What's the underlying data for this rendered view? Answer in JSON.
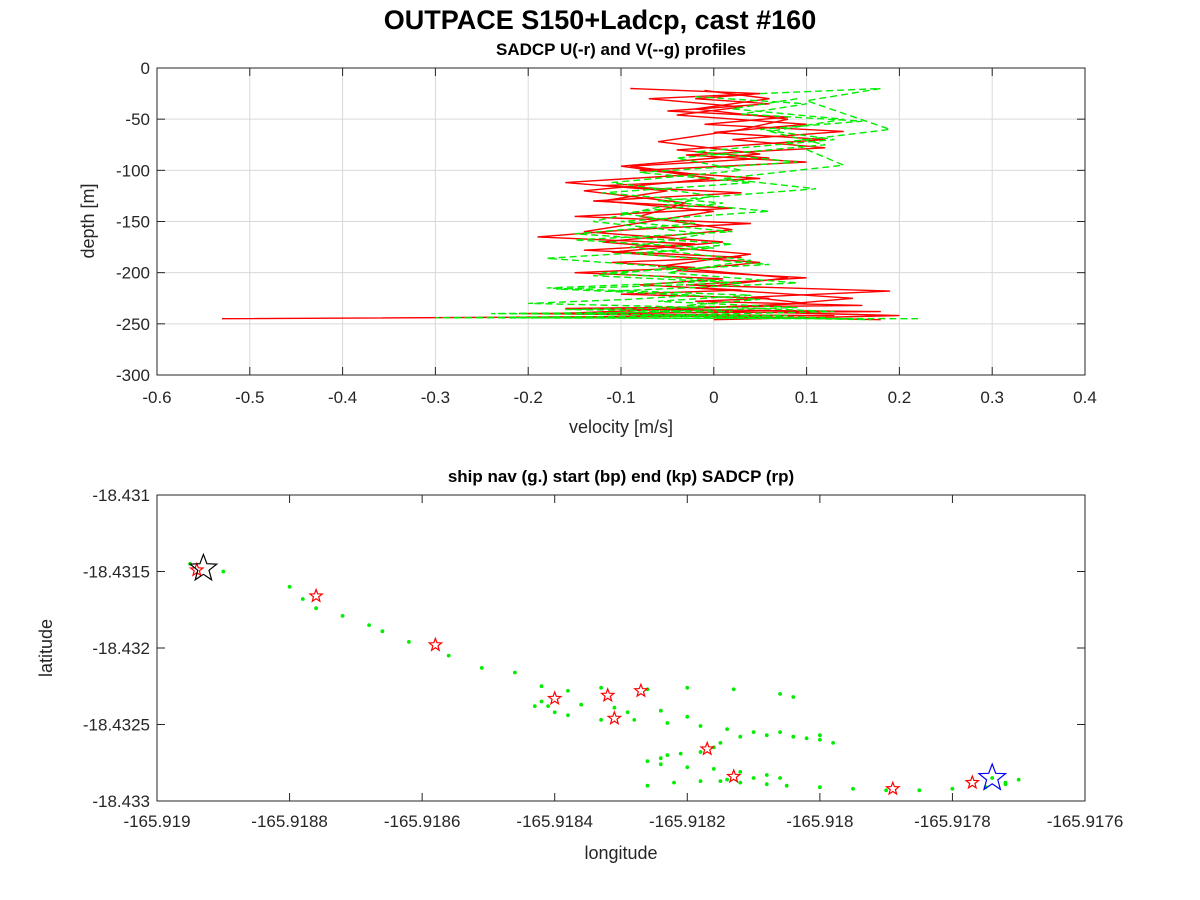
{
  "figure": {
    "title": "OUTPACE S150+Ladcp, cast #160"
  },
  "chart_data": [
    {
      "type": "line",
      "title": "SADCP U(-r) and V(--g) profiles",
      "xlabel": "velocity [m/s]",
      "ylabel": "depth [m]",
      "xlim": [
        -0.6,
        0.4
      ],
      "ylim": [
        -300,
        0
      ],
      "xticks": [
        -0.6,
        -0.5,
        -0.4,
        -0.3,
        -0.2,
        -0.1,
        0,
        0.1,
        0.2,
        0.3,
        0.4
      ],
      "xtick_labels": [
        "-0.6",
        "-0.5",
        "-0.4",
        "-0.3",
        "-0.2",
        "-0.1",
        "0",
        "0.1",
        "0.2",
        "0.3",
        "0.4"
      ],
      "yticks": [
        -300,
        -250,
        -200,
        -150,
        -100,
        -50,
        0
      ],
      "ytick_labels": [
        "-300",
        "-250",
        "-200",
        "-150",
        "-100",
        "-50",
        "0"
      ],
      "grid": true,
      "series": [
        {
          "color": "#ff0000",
          "style": "solid",
          "x": [
            -0.09,
            0.05,
            -0.02,
            0.06,
            -0.05,
            0.08,
            -0.01,
            0.14,
            0.02,
            0.12,
            -0.03,
            0.1,
            -0.08,
            0.05,
            -0.12,
            0.03,
            -0.13,
            0.02,
            -0.15,
            0.04,
            -0.09,
            -0.19,
            -0.02,
            -0.14,
            0.03,
            -0.11,
            -0.02,
            -0.15,
            0.01,
            -0.08,
            0.03,
            -0.1,
            0.06,
            -0.02,
            0.16,
            -0.16,
            0.18,
            -0.21,
            0.13,
            -0.53
          ],
          "y": [
            -20,
            -25,
            -30,
            -35,
            -42,
            -48,
            -55,
            -62,
            -70,
            -78,
            -85,
            -92,
            -100,
            -108,
            -115,
            -122,
            -130,
            -137,
            -145,
            -152,
            -158,
            -165,
            -172,
            -178,
            -185,
            -190,
            -195,
            -200,
            -206,
            -212,
            -217,
            -221,
            -225,
            -228,
            -232,
            -235,
            -238,
            -240,
            -242,
            -245
          ]
        },
        {
          "color": "#ff0000",
          "style": "solid",
          "x": [
            0.05,
            -0.07,
            0.03,
            -0.04,
            0.1,
            0.0,
            0.12,
            -0.04,
            0.06,
            -0.09,
            -0.02,
            -0.16,
            -0.05,
            -0.12,
            0.0,
            -0.07,
            -0.14,
            0.01,
            -0.11,
            0.05,
            -0.04,
            0.1,
            -0.03,
            0.19,
            0.04,
            0.1,
            -0.06,
            0.2,
            0.0
          ],
          "y": [
            -25,
            -30,
            -38,
            -46,
            -55,
            -63,
            -70,
            -80,
            -88,
            -96,
            -104,
            -112,
            -120,
            -130,
            -140,
            -150,
            -160,
            -170,
            -180,
            -190,
            -198,
            -205,
            -212,
            -218,
            -224,
            -230,
            -236,
            -242,
            -246
          ]
        },
        {
          "color": "#ff0000",
          "style": "solid",
          "x": [
            -0.01,
            0.06,
            -0.02,
            0.08,
            0.03,
            -0.06,
            0.05,
            -0.1,
            0.0,
            -0.14,
            -0.03,
            -0.08,
            0.02,
            -0.12,
            0.04,
            -0.06,
            0.08,
            -0.02,
            0.15,
            0.06,
            -0.17,
            0.18
          ],
          "y": [
            -22,
            -30,
            -40,
            -50,
            -60,
            -72,
            -84,
            -96,
            -108,
            -120,
            -132,
            -145,
            -158,
            -170,
            -182,
            -194,
            -205,
            -215,
            -225,
            -232,
            -240,
            -246
          ]
        },
        {
          "color": "#00ee00",
          "style": "dashed",
          "x": [
            0.05,
            0.18,
            0.1,
            0.19,
            0.08,
            0.14,
            0.01,
            0.11,
            -0.06,
            0.06,
            -0.1,
            0.02,
            -0.15,
            0.0,
            -0.18,
            -0.04,
            -0.13,
            0.03,
            -0.17,
            -0.02,
            -0.09,
            -0.2,
            -0.01,
            -0.16,
            0.02,
            -0.24,
            0.08,
            -0.3,
            0.15,
            -0.22,
            0.22
          ],
          "y": [
            -25,
            -20,
            -32,
            -60,
            -72,
            -95,
            -108,
            -118,
            -130,
            -140,
            -150,
            -160,
            -168,
            -176,
            -186,
            -195,
            -203,
            -210,
            -216,
            -222,
            -226,
            -230,
            -234,
            -236,
            -238,
            -240,
            -242,
            -244,
            -245,
            -244,
            -245
          ]
        },
        {
          "color": "#00ee00",
          "style": "dashed",
          "x": [
            -0.02,
            0.1,
            0.03,
            0.16,
            0.05,
            0.13,
            -0.02,
            0.09,
            -0.08,
            0.04,
            -0.12,
            0.01,
            -0.1,
            -0.02,
            -0.15,
            0.02,
            -0.08,
            0.06,
            -0.12,
            0.01,
            -0.18,
            0.04,
            -0.06,
            0.09,
            -0.14,
            0.12
          ],
          "y": [
            -28,
            -35,
            -45,
            -52,
            -60,
            -70,
            -82,
            -92,
            -102,
            -112,
            -122,
            -132,
            -142,
            -152,
            -162,
            -172,
            -182,
            -192,
            -200,
            -208,
            -215,
            -222,
            -228,
            -234,
            -240,
            -244
          ]
        },
        {
          "color": "#00ee00",
          "style": "dashed",
          "x": [
            0.09,
            0.02,
            0.14,
            0.06,
            0.12,
            -0.04,
            0.03,
            -0.11,
            0.0,
            -0.07,
            -0.13,
            -0.01,
            -0.09,
            0.04,
            -0.05,
            0.09,
            -0.11,
            0.05,
            -0.03,
            0.13,
            -0.08,
            0.17
          ],
          "y": [
            -30,
            -40,
            -50,
            -62,
            -75,
            -88,
            -100,
            -112,
            -125,
            -138,
            -150,
            -162,
            -175,
            -188,
            -200,
            -210,
            -218,
            -226,
            -232,
            -238,
            -242,
            -246
          ]
        }
      ]
    },
    {
      "type": "scatter",
      "title": "ship nav (g.) start (bp) end (kp) SADCP (rp)",
      "xlabel": "longitude",
      "ylabel": "latitude",
      "xlim": [
        -165.919,
        -165.9176
      ],
      "ylim": [
        -18.433,
        -18.431
      ],
      "xticks": [
        -165.919,
        -165.9188,
        -165.9186,
        -165.9184,
        -165.9182,
        -165.918,
        -165.9178,
        -165.9176
      ],
      "xtick_labels": [
        "-165.919",
        "-165.9188",
        "-165.9186",
        "-165.9184",
        "-165.9182",
        "-165.918",
        "-165.9178",
        "-165.9176"
      ],
      "yticks": [
        -18.433,
        -18.4325,
        -18.432,
        -18.4315,
        -18.431
      ],
      "ytick_labels": [
        "-18.433",
        "-18.4325",
        "-18.432",
        "-18.4315",
        "-18.431"
      ],
      "grid": false,
      "ship_nav": {
        "color": "#00ee00",
        "lon": [
          -165.91895,
          -165.9189,
          -165.9188,
          -165.91878,
          -165.91876,
          -165.91872,
          -165.91868,
          -165.91866,
          -165.91862,
          -165.91856,
          -165.91851,
          -165.91846,
          -165.91842,
          -165.91838,
          -165.91833,
          -165.91826,
          -165.9182,
          -165.91813,
          -165.91806,
          -165.91804,
          -165.91842,
          -165.91841,
          -165.91836,
          -165.91831,
          -165.91829,
          -165.91824,
          -165.9182,
          -165.91843,
          -165.9184,
          -165.91838,
          -165.91833,
          -165.91828,
          -165.91823,
          -165.91818,
          -165.91814,
          -165.9181,
          -165.91806,
          -165.91802,
          -165.918,
          -165.91798,
          -165.918,
          -165.91804,
          -165.91808,
          -165.91812,
          -165.91815,
          -165.91816,
          -165.91818,
          -165.91821,
          -165.91823,
          -165.91824,
          -165.91826,
          -165.91824,
          -165.9182,
          -165.91816,
          -165.91812,
          -165.91808,
          -165.91806,
          -165.9181,
          -165.91814,
          -165.91818,
          -165.91822,
          -165.91826,
          -165.91815,
          -165.91812,
          -165.91808,
          -165.91805,
          -165.918,
          -165.91795,
          -165.9179,
          -165.91785,
          -165.9178,
          -165.91775,
          -165.91772,
          -165.9177,
          -165.91774,
          -165.91772
        ],
        "lat": [
          -18.43145,
          -18.4315,
          -18.4316,
          -18.43168,
          -18.43174,
          -18.43179,
          -18.43185,
          -18.43189,
          -18.43196,
          -18.43205,
          -18.43213,
          -18.43216,
          -18.43225,
          -18.43228,
          -18.43226,
          -18.43227,
          -18.43226,
          -18.43227,
          -18.4323,
          -18.43232,
          -18.43235,
          -18.43238,
          -18.43237,
          -18.43239,
          -18.43242,
          -18.43241,
          -18.43245,
          -18.43238,
          -18.43242,
          -18.43244,
          -18.43247,
          -18.43247,
          -18.43249,
          -18.43251,
          -18.43253,
          -18.43255,
          -18.43255,
          -18.43259,
          -18.43257,
          -18.43262,
          -18.4326,
          -18.43258,
          -18.43257,
          -18.43258,
          -18.43262,
          -18.43265,
          -18.43268,
          -18.43269,
          -18.4327,
          -18.43272,
          -18.43274,
          -18.43276,
          -18.43278,
          -18.43279,
          -18.43281,
          -18.43283,
          -18.43285,
          -18.43285,
          -18.43286,
          -18.43287,
          -18.43288,
          -18.4329,
          -18.43287,
          -18.43288,
          -18.43289,
          -18.4329,
          -18.43291,
          -18.43292,
          -18.43293,
          -18.43293,
          -18.43292,
          -18.43291,
          -18.43288,
          -18.43286,
          -18.43285,
          -18.43289
        ]
      },
      "sadcp": {
        "color": "#ff0000",
        "lon": [
          -165.91894,
          -165.91876,
          -165.91858,
          -165.9184,
          -165.91832,
          -165.91827,
          -165.91831,
          -165.91817,
          -165.91813,
          -165.91789,
          -165.91777
        ],
        "lat": [
          -18.43149,
          -18.43166,
          -18.43198,
          -18.43233,
          -18.43231,
          -18.43228,
          -18.43246,
          -18.43266,
          -18.43284,
          -18.43292,
          -18.43288
        ]
      },
      "start": {
        "color": "#000000",
        "lon": -165.91893,
        "lat": -18.43148
      },
      "end": {
        "color": "#0000ff",
        "lon": -165.91774,
        "lat": -18.43285
      }
    }
  ]
}
